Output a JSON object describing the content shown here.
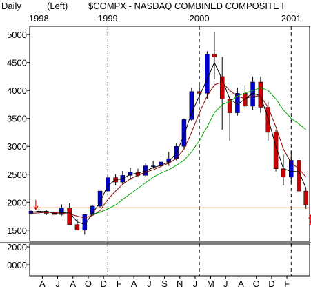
{
  "header": {
    "period": "Daily",
    "scale": "(Left)",
    "title": "$COMPX - NASDAQ COMBINED COMPOSITE I"
  },
  "colors": {
    "up_candle": "#0000cc",
    "down_candle": "#cc0000",
    "ma_black": "#000000",
    "ma_darkred": "#8b0000",
    "ma_green": "#00aa00",
    "support_line": "#ff0000",
    "arrow": "#ff0000",
    "grid_vline": "#000000"
  },
  "chart_data": {
    "type": "line",
    "title": "$COMPX - NASDAQ COMBINED COMPOSITE I",
    "xlabel": "",
    "ylabel": "",
    "ylim": [
      1300,
      5150
    ],
    "yticks": [
      1500,
      2000,
      2500,
      3000,
      3500,
      4000,
      4500,
      5000
    ],
    "year_labels": [
      {
        "label": "1998",
        "x": "1998-04-01"
      },
      {
        "label": "1999",
        "x": "1999-01-01"
      },
      {
        "label": "2000",
        "x": "2000-01-01"
      },
      {
        "label": "2001",
        "x": "2001-01-01"
      }
    ],
    "year_dividers": [
      "1999-01-01",
      "2000-01-01",
      "2001-01-01"
    ],
    "month_labels": [
      {
        "label": "A",
        "x": "1998-04-15"
      },
      {
        "label": "J",
        "x": "1998-06-15"
      },
      {
        "label": "A",
        "x": "1998-08-15"
      },
      {
        "label": "O",
        "x": "1998-10-15"
      },
      {
        "label": "D",
        "x": "1998-12-15"
      },
      {
        "label": "F",
        "x": "1999-02-15"
      },
      {
        "label": "A",
        "x": "1999-04-15"
      },
      {
        "label": "J",
        "x": "1999-06-15"
      },
      {
        "label": "S",
        "x": "1999-08-15"
      },
      {
        "label": "N",
        "x": "1999-10-15"
      },
      {
        "label": "J",
        "x": "1999-12-15"
      },
      {
        "label": "M",
        "x": "2000-02-15"
      },
      {
        "label": "J",
        "x": "2000-04-15"
      },
      {
        "label": "A",
        "x": "2000-06-15"
      },
      {
        "label": "O",
        "x": "2000-08-15"
      },
      {
        "label": "D",
        "x": "2000-10-15"
      },
      {
        "label": "F",
        "x": "2000-12-15"
      }
    ],
    "support_level": 1900,
    "annotations": [
      {
        "type": "down-arrow",
        "x": "1998-03-20",
        "y": 1870
      },
      {
        "type": "up-arrow",
        "x": "2001-03-20",
        "y": 1770
      }
    ],
    "price_series": {
      "name": "$COMPX",
      "x": [
        "1998-03-01",
        "1998-04-01",
        "1998-05-01",
        "1998-06-01",
        "1998-07-01",
        "1998-08-01",
        "1998-09-01",
        "1998-10-01",
        "1998-11-01",
        "1998-12-01",
        "1999-01-01",
        "1999-02-01",
        "1999-03-01",
        "1999-04-01",
        "1999-05-01",
        "1999-06-01",
        "1999-07-01",
        "1999-08-01",
        "1999-09-01",
        "1999-10-01",
        "1999-11-01",
        "1999-12-01",
        "2000-01-01",
        "2000-02-01",
        "2000-03-01",
        "2000-04-01",
        "2000-05-01",
        "2000-06-01",
        "2000-07-01",
        "2000-08-01",
        "2000-09-01",
        "2000-10-01",
        "2000-11-01",
        "2000-12-01",
        "2001-01-01",
        "2001-02-01",
        "2001-03-01"
      ],
      "open": [
        1800,
        1840,
        1840,
        1800,
        1780,
        1900,
        1600,
        1500,
        1780,
        1930,
        2200,
        2440,
        2360,
        2480,
        2540,
        2480,
        2650,
        2650,
        2720,
        2780,
        3000,
        3480,
        3980,
        3950,
        4650,
        4250,
        3850,
        3600,
        3950,
        3720,
        4150,
        3700,
        3250,
        2600,
        2450,
        2750,
        2200
      ],
      "high": [
        1850,
        1880,
        1860,
        1840,
        1960,
        1980,
        1700,
        1780,
        1950,
        2200,
        2500,
        2500,
        2560,
        2620,
        2600,
        2700,
        2740,
        2780,
        2900,
        3050,
        3500,
        4050,
        4100,
        4700,
        5050,
        4600,
        3900,
        4050,
        4100,
        4250,
        4250,
        3800,
        3300,
        2850,
        2900,
        2800,
        2250
      ],
      "low": [
        1780,
        1800,
        1770,
        1750,
        1760,
        1600,
        1500,
        1420,
        1760,
        1900,
        2150,
        2300,
        2300,
        2400,
        2450,
        2450,
        2600,
        2550,
        2650,
        2750,
        2950,
        3450,
        3800,
        3850,
        4200,
        3300,
        3100,
        3550,
        3700,
        3650,
        3600,
        3100,
        2550,
        2300,
        2350,
        2200,
        1880
      ],
      "close": [
        1840,
        1840,
        1800,
        1780,
        1900,
        1600,
        1500,
        1780,
        1930,
        2200,
        2440,
        2360,
        2480,
        2540,
        2480,
        2650,
        2650,
        2720,
        2780,
        3000,
        3480,
        3980,
        3950,
        4650,
        4600,
        3850,
        3600,
        3950,
        3720,
        4150,
        3700,
        3250,
        2600,
        2450,
        2750,
        2200,
        1950
      ]
    },
    "ma_series": [
      {
        "color": "#000000",
        "values": [
          1820,
          1835,
          1830,
          1800,
          1810,
          1820,
          1650,
          1600,
          1800,
          2000,
          2300,
          2400,
          2420,
          2500,
          2520,
          2560,
          2620,
          2660,
          2720,
          2880,
          3200,
          3600,
          3900,
          4200,
          4500,
          4200,
          3850,
          3750,
          3850,
          3950,
          3900,
          3500,
          3000,
          2600,
          2550,
          2550,
          2250
        ]
      },
      {
        "color": "#8b0000",
        "values": [
          1800,
          1810,
          1820,
          1815,
          1800,
          1790,
          1750,
          1720,
          1760,
          1850,
          2050,
          2200,
          2320,
          2420,
          2480,
          2540,
          2580,
          2640,
          2700,
          2780,
          2950,
          3250,
          3600,
          3900,
          4100,
          4150,
          4000,
          3900,
          3850,
          3900,
          3900,
          3700,
          3350,
          2950,
          2700,
          2600,
          2450
        ]
      },
      {
        "color": "#00aa00",
        "values": [
          null,
          null,
          null,
          null,
          null,
          null,
          null,
          null,
          1780,
          1820,
          1880,
          1950,
          2050,
          2150,
          2250,
          2350,
          2450,
          2520,
          2580,
          2660,
          2750,
          2900,
          3100,
          3350,
          3600,
          3750,
          3800,
          3900,
          3950,
          4000,
          4050,
          4000,
          3850,
          3650,
          3500,
          3400,
          3300
        ]
      }
    ],
    "bottom_panel": {
      "yticks": [
        2000,
        0
      ],
      "tick_labels": [
        "2000",
        "0000"
      ]
    }
  }
}
